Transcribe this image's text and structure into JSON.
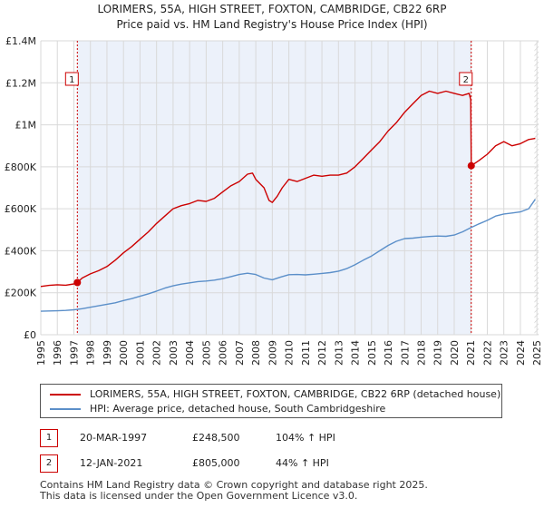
{
  "title_line1": "LORIMERS, 55A, HIGH STREET, FOXTON, CAMBRIDGE, CB22 6RP",
  "title_line2": "Price paid vs. HM Land Registry's House Price Index (HPI)",
  "colors": {
    "property": "#cc0000",
    "hpi": "#5b8fc9",
    "shade": "#dde6f5",
    "grid": "#d9d9d9"
  },
  "legend": {
    "property_label": "LORIMERS, 55A, HIGH STREET, FOXTON, CAMBRIDGE, CB22 6RP (detached house)",
    "hpi_label": "HPI: Average price, detached house, South Cambridgeshire"
  },
  "transactions": [
    {
      "num": "1",
      "date": "20-MAR-1997",
      "price": "£248,500",
      "hpi_change": "104% ↑ HPI"
    },
    {
      "num": "2",
      "date": "12-JAN-2021",
      "price": "£805,000",
      "hpi_change": "44% ↑ HPI"
    }
  ],
  "footer_line1": "Contains HM Land Registry data © Crown copyright and database right 2025.",
  "footer_line2": "This data is licensed under the Open Government Licence v3.0.",
  "chart_data": {
    "type": "line",
    "title": "LORIMERS, 55A, HIGH STREET, FOXTON, CAMBRIDGE, CB22 6RP — Price paid vs. HM Land Registry's House Price Index (HPI)",
    "xlabel": "",
    "ylabel": "",
    "xlim": [
      1995,
      2025.1
    ],
    "ylim": [
      0,
      1400000
    ],
    "x_ticks": [
      1995,
      1996,
      1997,
      1998,
      1999,
      2000,
      2001,
      2002,
      2003,
      2004,
      2005,
      2006,
      2007,
      2008,
      2009,
      2010,
      2011,
      2012,
      2013,
      2014,
      2015,
      2016,
      2017,
      2018,
      2019,
      2020,
      2021,
      2022,
      2023,
      2024,
      2025
    ],
    "x_tick_labels": [
      "1995",
      "1996",
      "1997",
      "1998",
      "1999",
      "2000",
      "2001",
      "2002",
      "2003",
      "2004",
      "2005",
      "2006",
      "2007",
      "2008",
      "2009",
      "2010",
      "2011",
      "2012",
      "2013",
      "2014",
      "2015",
      "2016",
      "2017",
      "2018",
      "2019",
      "2020",
      "2021",
      "2022",
      "2023",
      "2024",
      "2025"
    ],
    "y_ticks": [
      0,
      200000,
      400000,
      600000,
      800000,
      1000000,
      1200000,
      1400000
    ],
    "y_tick_labels": [
      "£0",
      "£200K",
      "£400K",
      "£600K",
      "£800K",
      "£1M",
      "£1.2M",
      "£1.4M"
    ],
    "grid": true,
    "shaded_ranges": [
      [
        1997.21,
        2021.03
      ]
    ],
    "hatched_after": 2024.85,
    "series": [
      {
        "name": "LORIMERS, 55A, HIGH STREET, FOXTON, CAMBRIDGE, CB22 6RP (detached house)",
        "color": "#cc0000",
        "x": [
          1995,
          1995.5,
          1996,
          1996.5,
          1997,
          1997.21,
          1997.5,
          1998,
          1998.5,
          1999,
          1999.5,
          2000,
          2000.5,
          2001,
          2001.5,
          2002,
          2002.5,
          2003,
          2003.5,
          2004,
          2004.5,
          2005,
          2005.5,
          2006,
          2006.5,
          2007,
          2007.5,
          2007.8,
          2008,
          2008.5,
          2008.8,
          2009,
          2009.3,
          2009.6,
          2010,
          2010.5,
          2011,
          2011.5,
          2012,
          2012.5,
          2013,
          2013.5,
          2014,
          2014.5,
          2015,
          2015.5,
          2016,
          2016.5,
          2017,
          2017.5,
          2018,
          2018.5,
          2019,
          2019.5,
          2020,
          2020.5,
          2020.9,
          2021.0,
          2021.03,
          2021.5,
          2022,
          2022.5,
          2023,
          2023.5,
          2024,
          2024.5,
          2024.9
        ],
        "y": [
          230000,
          235000,
          238000,
          236000,
          242000,
          248500,
          270000,
          290000,
          305000,
          325000,
          355000,
          390000,
          420000,
          455000,
          490000,
          530000,
          565000,
          600000,
          615000,
          625000,
          640000,
          635000,
          650000,
          680000,
          710000,
          730000,
          765000,
          770000,
          740000,
          700000,
          640000,
          630000,
          660000,
          700000,
          740000,
          730000,
          745000,
          760000,
          755000,
          760000,
          760000,
          770000,
          800000,
          840000,
          880000,
          920000,
          970000,
          1010000,
          1060000,
          1100000,
          1140000,
          1160000,
          1150000,
          1160000,
          1150000,
          1140000,
          1150000,
          1120000,
          805000,
          830000,
          860000,
          900000,
          920000,
          900000,
          910000,
          930000,
          935000
        ]
      },
      {
        "name": "HPI: Average price, detached house, South Cambridgeshire",
        "color": "#5b8fc9",
        "x": [
          1995,
          1995.5,
          1996,
          1996.5,
          1997,
          1997.5,
          1998,
          1998.5,
          1999,
          1999.5,
          2000,
          2000.5,
          2001,
          2001.5,
          2002,
          2002.5,
          2003,
          2003.5,
          2004,
          2004.5,
          2005,
          2005.5,
          2006,
          2006.5,
          2007,
          2007.5,
          2008,
          2008.5,
          2009,
          2009.5,
          2010,
          2010.5,
          2011,
          2011.5,
          2012,
          2012.5,
          2013,
          2013.5,
          2014,
          2014.5,
          2015,
          2015.5,
          2016,
          2016.5,
          2017,
          2017.5,
          2018,
          2018.5,
          2019,
          2019.5,
          2020,
          2020.5,
          2021,
          2021.5,
          2022,
          2022.5,
          2023,
          2023.5,
          2024,
          2024.5,
          2024.9
        ],
        "y": [
          112000,
          113000,
          114000,
          116000,
          119000,
          124000,
          131000,
          138000,
          145000,
          152000,
          163000,
          172000,
          183000,
          195000,
          208000,
          222000,
          233000,
          241000,
          247000,
          253000,
          256000,
          260000,
          267000,
          277000,
          287000,
          293000,
          287000,
          270000,
          262000,
          275000,
          286000,
          287000,
          285000,
          288000,
          292000,
          296000,
          303000,
          315000,
          333000,
          355000,
          375000,
          400000,
          425000,
          445000,
          458000,
          460000,
          465000,
          468000,
          470000,
          469000,
          475000,
          490000,
          510000,
          528000,
          545000,
          565000,
          575000,
          580000,
          585000,
          600000,
          645000
        ]
      }
    ],
    "markers": [
      {
        "label": "1",
        "x": 1997.21,
        "y": 248500
      },
      {
        "label": "2",
        "x": 2021.03,
        "y": 805000
      }
    ]
  }
}
